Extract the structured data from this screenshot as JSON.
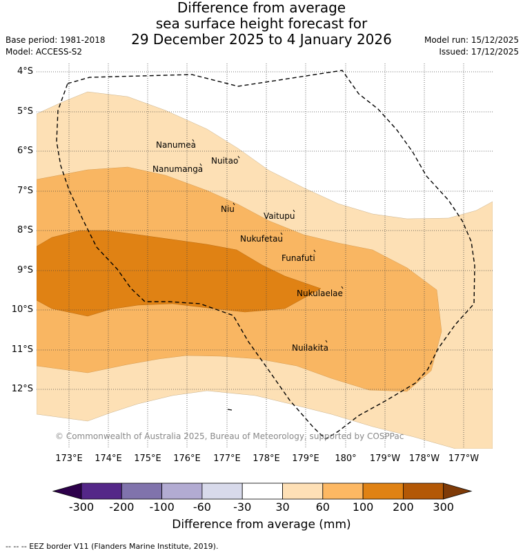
{
  "title": {
    "line1": "Difference from average",
    "line2": "sea surface height forecast for",
    "line3": "29 December 2025 to 4 January 2026"
  },
  "meta": {
    "base_period": "Base period: 1981-2018",
    "model": "Model: ACCESS-S2",
    "model_run": "Model run: 15/12/2025",
    "issued": "Issued: 17/12/2025"
  },
  "map": {
    "lat_labels": [
      "4°S",
      "5°S",
      "6°S",
      "7°S",
      "8°S",
      "9°S",
      "10°S",
      "11°S",
      "12°S"
    ],
    "lon_labels": [
      "173°E",
      "174°E",
      "175°E",
      "176°E",
      "177°E",
      "178°E",
      "179°E",
      "180°",
      "179°W",
      "178°W",
      "177°W"
    ],
    "places": [
      "Nanumea",
      "Nuitao",
      "Nanumanga",
      "Niu",
      "Vaitupu",
      "Nukufetau",
      "Funafuti",
      "Nukulaelae",
      "Nuilakita"
    ],
    "copyright": "© Commonwealth of Australia 2025, Bureau of Meteorology, supported by COSPPac",
    "colors": {
      "band_30_60": "#fde0b5",
      "band_60_100": "#f9b662",
      "band_100_200": "#e08214",
      "eez": "#000000",
      "grid": "#444444"
    }
  },
  "colorbar": {
    "ticks": [
      "-300",
      "-200",
      "-100",
      "-60",
      "-30",
      "30",
      "60",
      "100",
      "200",
      "300"
    ],
    "colors": [
      "#2d004b",
      "#542788",
      "#8073ac",
      "#b2abd2",
      "#d8daeb",
      "#ffffff",
      "#fee0b6",
      "#fdb863",
      "#e08214",
      "#b35806",
      "#7f3b08"
    ],
    "title": "Difference from average (mm)"
  },
  "footnote": "--  --  -- EEZ border V11 (Flanders Marine Institute, 2019)."
}
